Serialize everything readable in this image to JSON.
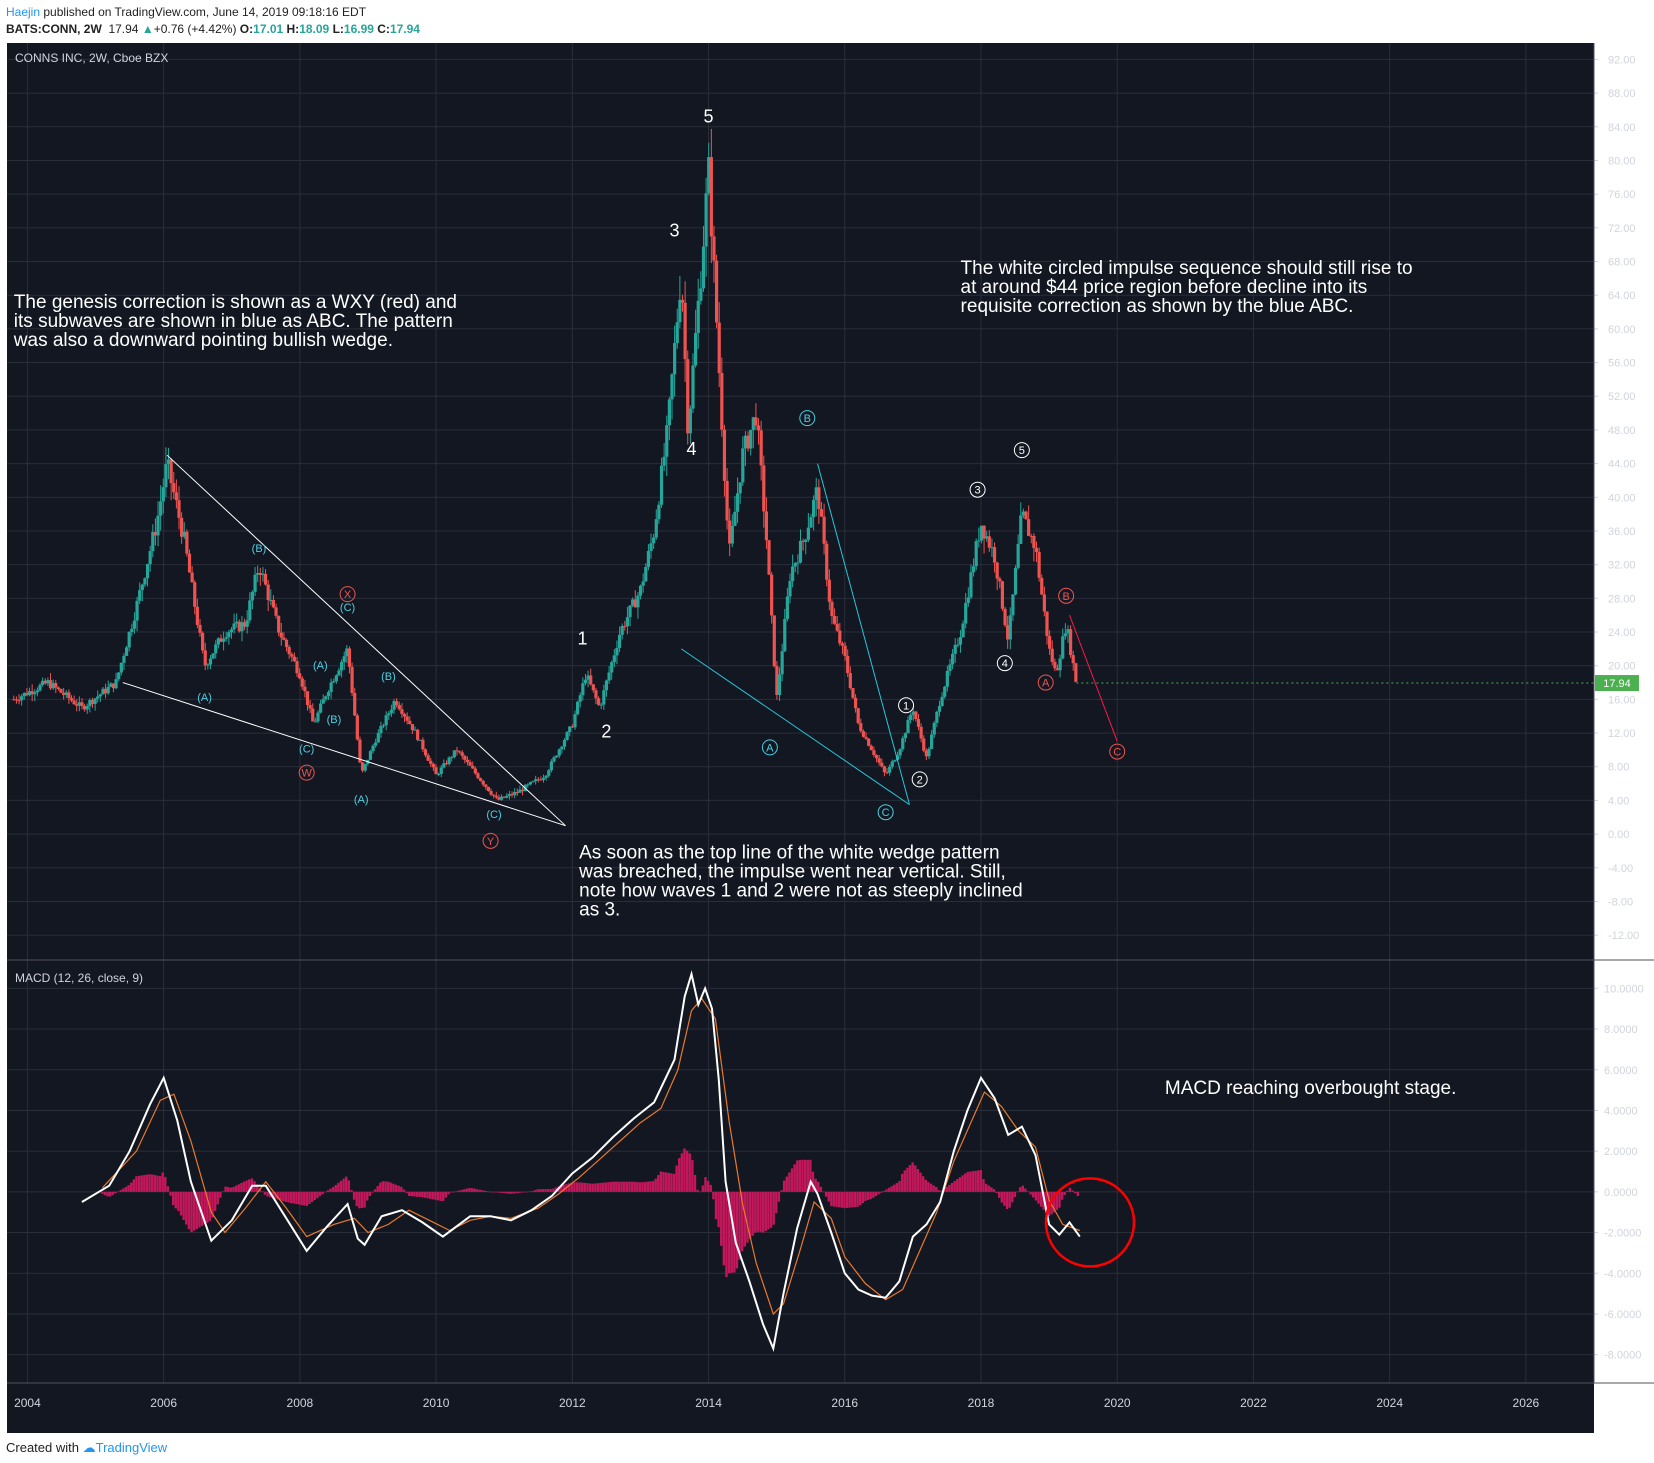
{
  "header": {
    "author": "Haejin",
    "published_text": "published on TradingView.com, June 14, 2019 09:18:16 EDT",
    "symbol_line": "BATS:CONN, 2W",
    "last": "17.94",
    "change": "+0.76 (+4.42%)",
    "o_label": "O:",
    "o": "17.01",
    "h_label": "H:",
    "h": "18.09",
    "l_label": "L:",
    "l": "16.99",
    "c_label": "C:",
    "c": "17.94"
  },
  "footer": {
    "created_with": "Created with",
    "brand": "TradingView"
  },
  "colors": {
    "background": "#131722",
    "grid": "#2a2e39",
    "up": "#26a69a",
    "down": "#ef5350",
    "macd_line": "#ffffff",
    "signal_line": "#e8792b",
    "histogram": "#c2185b",
    "wave_blue": "#4dd0e1",
    "wave_red": "#ef5350",
    "wave_white": "#ffffff",
    "highlight_circle": "#ff0000",
    "price_tag": "#4caf50"
  },
  "chart_data": [
    {
      "type": "candlestick",
      "title": "CONNS INC, 2W, Cboe BZX",
      "yticks": [
        "92.00",
        "88.00",
        "84.00",
        "80.00",
        "76.00",
        "72.00",
        "68.00",
        "64.00",
        "60.00",
        "56.00",
        "52.00",
        "48.00",
        "44.00",
        "40.00",
        "36.00",
        "32.00",
        "28.00",
        "24.00",
        "20.00",
        "16.00",
        "12.00",
        "8.00",
        "4.00",
        "0.00",
        "-4.00",
        "-8.00",
        "-12.00"
      ],
      "ylim": [
        -14,
        93
      ],
      "xticks": [
        "2004",
        "2006",
        "2008",
        "2010",
        "2012",
        "2014",
        "2016",
        "2018",
        "2020",
        "2022",
        "2024",
        "2026"
      ],
      "xlim": [
        2003.7,
        2027.0
      ],
      "last_price_label": "17.94",
      "last_price": 17.94,
      "price_path": [
        [
          2003.8,
          16
        ],
        [
          2004.3,
          18
        ],
        [
          2004.8,
          15
        ],
        [
          2005.3,
          18
        ],
        [
          2005.6,
          27
        ],
        [
          2005.9,
          37
        ],
        [
          2006.05,
          44
        ],
        [
          2006.3,
          35
        ],
        [
          2006.6,
          20
        ],
        [
          2006.9,
          24
        ],
        [
          2007.2,
          25
        ],
        [
          2007.4,
          32
        ],
        [
          2007.7,
          24
        ],
        [
          2008.0,
          19
        ],
        [
          2008.2,
          13
        ],
        [
          2008.4,
          17
        ],
        [
          2008.7,
          22
        ],
        [
          2008.9,
          7
        ],
        [
          2009.1,
          11
        ],
        [
          2009.4,
          16
        ],
        [
          2009.7,
          12
        ],
        [
          2010.0,
          7
        ],
        [
          2010.3,
          10
        ],
        [
          2010.6,
          7
        ],
        [
          2010.9,
          4
        ],
        [
          2011.2,
          5
        ],
        [
          2011.6,
          7
        ],
        [
          2012.0,
          13
        ],
        [
          2012.2,
          19
        ],
        [
          2012.4,
          15
        ],
        [
          2012.7,
          24
        ],
        [
          2013.0,
          29
        ],
        [
          2013.2,
          36
        ],
        [
          2013.4,
          48
        ],
        [
          2013.6,
          67
        ],
        [
          2013.7,
          48
        ],
        [
          2013.9,
          68
        ],
        [
          2014.0,
          79
        ],
        [
          2014.15,
          56
        ],
        [
          2014.3,
          33
        ],
        [
          2014.5,
          45
        ],
        [
          2014.7,
          50
        ],
        [
          2014.85,
          35
        ],
        [
          2015.0,
          16
        ],
        [
          2015.2,
          31
        ],
        [
          2015.4,
          35
        ],
        [
          2015.6,
          41
        ],
        [
          2015.8,
          26
        ],
        [
          2016.0,
          21
        ],
        [
          2016.2,
          13
        ],
        [
          2016.4,
          10
        ],
        [
          2016.6,
          7
        ],
        [
          2016.8,
          10
        ],
        [
          2017.0,
          15
        ],
        [
          2017.2,
          9
        ],
        [
          2017.4,
          16
        ],
        [
          2017.7,
          24
        ],
        [
          2018.0,
          37
        ],
        [
          2018.2,
          33
        ],
        [
          2018.4,
          23
        ],
        [
          2018.6,
          38
        ],
        [
          2018.8,
          34
        ],
        [
          2019.0,
          22
        ],
        [
          2019.1,
          19
        ],
        [
          2019.25,
          25
        ],
        [
          2019.4,
          17.94
        ]
      ],
      "wedge_lines": [
        {
          "color": "white",
          "from": [
            2006.05,
            45
          ],
          "to": [
            2011.9,
            1
          ]
        },
        {
          "color": "white",
          "from": [
            2005.4,
            18
          ],
          "to": [
            2011.9,
            1
          ]
        },
        {
          "color": "cyan",
          "from": [
            2015.6,
            44
          ],
          "to": [
            2016.95,
            3.5
          ]
        },
        {
          "color": "cyan",
          "from": [
            2013.6,
            22
          ],
          "to": [
            2016.95,
            3.5
          ]
        },
        {
          "color": "red",
          "from": [
            2019.3,
            26
          ],
          "to": [
            2020.0,
            11
          ]
        }
      ],
      "wave_labels": [
        {
          "text": "1",
          "color": "white",
          "style": "plain",
          "x": 2012.15,
          "y": 22.5
        },
        {
          "text": "2",
          "color": "white",
          "style": "plain",
          "x": 2012.5,
          "y": 11.5
        },
        {
          "text": "3",
          "color": "white",
          "style": "plain",
          "x": 2013.5,
          "y": 71
        },
        {
          "text": "4",
          "color": "white",
          "style": "plain",
          "x": 2013.75,
          "y": 45
        },
        {
          "text": "5",
          "color": "white",
          "style": "plain",
          "x": 2014.0,
          "y": 84.5
        },
        {
          "text": "(B)",
          "color": "blue",
          "style": "paren",
          "x": 2007.4,
          "y": 33.5
        },
        {
          "text": "(C)",
          "color": "blue",
          "style": "paren",
          "x": 2008.7,
          "y": 26.5
        },
        {
          "text": "(A)",
          "color": "blue",
          "style": "paren",
          "x": 2006.6,
          "y": 15.8
        },
        {
          "text": "(A)",
          "color": "blue",
          "style": "paren",
          "x": 2008.3,
          "y": 19.6
        },
        {
          "text": "(B)",
          "color": "blue",
          "style": "paren",
          "x": 2008.5,
          "y": 13.2
        },
        {
          "text": "(B)",
          "color": "blue",
          "style": "paren",
          "x": 2009.3,
          "y": 18.3
        },
        {
          "text": "(C)",
          "color": "blue",
          "style": "paren",
          "x": 2008.1,
          "y": 9.7
        },
        {
          "text": "(A)",
          "color": "blue",
          "style": "paren",
          "x": 2008.9,
          "y": 3.7
        },
        {
          "text": "(C)",
          "color": "blue",
          "style": "paren",
          "x": 2010.85,
          "y": 1.9
        },
        {
          "text": "X",
          "color": "red",
          "style": "circle",
          "x": 2008.7,
          "y": 28.5
        },
        {
          "text": "W",
          "color": "red",
          "style": "circle",
          "x": 2008.1,
          "y": 7.3
        },
        {
          "text": "Y",
          "color": "red",
          "style": "circle",
          "x": 2010.8,
          "y": -0.8
        },
        {
          "text": "B",
          "color": "blue",
          "style": "circle",
          "x": 2015.45,
          "y": 49.4
        },
        {
          "text": "A",
          "color": "blue",
          "style": "circle",
          "x": 2014.9,
          "y": 10.3
        },
        {
          "text": "C",
          "color": "blue",
          "style": "circle",
          "x": 2016.6,
          "y": 2.6
        },
        {
          "text": "1",
          "color": "white",
          "style": "circle",
          "x": 2016.9,
          "y": 15.3
        },
        {
          "text": "2",
          "color": "white",
          "style": "circle",
          "x": 2017.1,
          "y": 6.5
        },
        {
          "text": "3",
          "color": "white",
          "style": "circle",
          "x": 2017.95,
          "y": 40.9
        },
        {
          "text": "4",
          "color": "white",
          "style": "circle",
          "x": 2018.35,
          "y": 20.3
        },
        {
          "text": "5",
          "color": "white",
          "style": "circle",
          "x": 2018.6,
          "y": 45.6
        },
        {
          "text": "B",
          "color": "red",
          "style": "circle",
          "x": 2019.25,
          "y": 28.3
        },
        {
          "text": "A",
          "color": "red",
          "style": "circle",
          "x": 2018.95,
          "y": 18.0
        },
        {
          "text": "C",
          "color": "red",
          "style": "circle",
          "x": 2020.0,
          "y": 9.8
        }
      ],
      "annotations": [
        {
          "lines": [
            "The genesis correction is shown as a WXY (red) and",
            "its subwaves are shown in blue as ABC. The pattern",
            "was also a downward pointing bullish wedge."
          ],
          "x": 2003.8,
          "y": 62.5
        },
        {
          "lines": [
            "The white circled impulse sequence should still rise to",
            "at around $44 price region before decline into its",
            "requisite correction as shown by the blue ABC."
          ],
          "x": 2017.7,
          "y": 66.5
        },
        {
          "lines": [
            "As soon as the top line of the white wedge pattern",
            "was breached, the impulse went near vertical. Still,",
            "note how waves 1 and 2 were not as steeply inclined",
            "as 3."
          ],
          "x": 2012.1,
          "y": -2.9
        }
      ]
    },
    {
      "type": "line",
      "title": "MACD (12, 26, close, 9)",
      "yticks": [
        "10.0000",
        "8.0000",
        "6.0000",
        "4.0000",
        "2.0000",
        "0.0000",
        "-2.0000",
        "-4.0000",
        "-6.0000",
        "-8.0000"
      ],
      "ylim": [
        -9.0,
        11.0
      ],
      "macd_path": [
        [
          2004.8,
          -0.5
        ],
        [
          2005.2,
          0.3
        ],
        [
          2005.5,
          2
        ],
        [
          2005.8,
          4.3
        ],
        [
          2006.0,
          5.6
        ],
        [
          2006.2,
          3.5
        ],
        [
          2006.4,
          0.5
        ],
        [
          2006.7,
          -2.4
        ],
        [
          2007.0,
          -1.4
        ],
        [
          2007.3,
          0.3
        ],
        [
          2007.5,
          0.3
        ],
        [
          2007.8,
          -1.3
        ],
        [
          2008.1,
          -2.9
        ],
        [
          2008.4,
          -1.7
        ],
        [
          2008.7,
          -0.6
        ],
        [
          2008.85,
          -2.3
        ],
        [
          2008.95,
          -2.6
        ],
        [
          2009.2,
          -1.2
        ],
        [
          2009.5,
          -0.9
        ],
        [
          2009.8,
          -1.5
        ],
        [
          2010.1,
          -2.2
        ],
        [
          2010.5,
          -1.2
        ],
        [
          2010.8,
          -1.2
        ],
        [
          2011.1,
          -1.4
        ],
        [
          2011.4,
          -0.9
        ],
        [
          2011.7,
          -0.2
        ],
        [
          2012.0,
          0.9
        ],
        [
          2012.3,
          1.7
        ],
        [
          2012.6,
          2.7
        ],
        [
          2012.9,
          3.6
        ],
        [
          2013.2,
          4.4
        ],
        [
          2013.5,
          6.5
        ],
        [
          2013.65,
          9.6
        ],
        [
          2013.75,
          10.7
        ],
        [
          2013.85,
          9.2
        ],
        [
          2013.95,
          10.0
        ],
        [
          2014.05,
          9.0
        ],
        [
          2014.15,
          5.5
        ],
        [
          2014.25,
          0.5
        ],
        [
          2014.4,
          -2.5
        ],
        [
          2014.6,
          -4.4
        ],
        [
          2014.8,
          -6.5
        ],
        [
          2014.95,
          -7.7
        ],
        [
          2015.1,
          -5.0
        ],
        [
          2015.3,
          -1.8
        ],
        [
          2015.5,
          0.5
        ],
        [
          2015.6,
          -0.1
        ],
        [
          2015.8,
          -2.0
        ],
        [
          2016.0,
          -4.0
        ],
        [
          2016.2,
          -4.8
        ],
        [
          2016.4,
          -5.1
        ],
        [
          2016.6,
          -5.2
        ],
        [
          2016.8,
          -4.4
        ],
        [
          2017.0,
          -2.2
        ],
        [
          2017.2,
          -1.6
        ],
        [
          2017.4,
          -0.5
        ],
        [
          2017.6,
          2.0
        ],
        [
          2017.8,
          4.0
        ],
        [
          2018.0,
          5.6
        ],
        [
          2018.2,
          4.6
        ],
        [
          2018.4,
          2.8
        ],
        [
          2018.6,
          3.2
        ],
        [
          2018.8,
          1.8
        ],
        [
          2019.0,
          -1.6
        ],
        [
          2019.15,
          -2.1
        ],
        [
          2019.3,
          -1.5
        ],
        [
          2019.45,
          -2.2
        ]
      ],
      "signal_path": [
        [
          2005.1,
          0.2
        ],
        [
          2005.6,
          2
        ],
        [
          2005.95,
          4.5
        ],
        [
          2006.15,
          4.8
        ],
        [
          2006.4,
          2.5
        ],
        [
          2006.7,
          -1.0
        ],
        [
          2006.9,
          -2.0
        ],
        [
          2007.2,
          -0.8
        ],
        [
          2007.5,
          0.5
        ],
        [
          2007.8,
          -0.8
        ],
        [
          2008.1,
          -2.2
        ],
        [
          2008.5,
          -1.6
        ],
        [
          2008.8,
          -1.3
        ],
        [
          2009.0,
          -2.0
        ],
        [
          2009.3,
          -1.6
        ],
        [
          2009.6,
          -0.9
        ],
        [
          2009.9,
          -1.4
        ],
        [
          2010.2,
          -1.9
        ],
        [
          2010.5,
          -1.4
        ],
        [
          2010.8,
          -1.2
        ],
        [
          2011.1,
          -1.3
        ],
        [
          2011.5,
          -0.8
        ],
        [
          2011.8,
          -0.1
        ],
        [
          2012.1,
          0.7
        ],
        [
          2012.4,
          1.6
        ],
        [
          2012.7,
          2.5
        ],
        [
          2013.0,
          3.4
        ],
        [
          2013.3,
          4.1
        ],
        [
          2013.55,
          6.0
        ],
        [
          2013.75,
          8.9
        ],
        [
          2013.9,
          9.5
        ],
        [
          2014.1,
          8.5
        ],
        [
          2014.3,
          3.5
        ],
        [
          2014.5,
          -0.6
        ],
        [
          2014.7,
          -3.5
        ],
        [
          2014.95,
          -6.0
        ],
        [
          2015.1,
          -5.5
        ],
        [
          2015.35,
          -2.8
        ],
        [
          2015.55,
          -0.5
        ],
        [
          2015.8,
          -1.3
        ],
        [
          2016.0,
          -3.2
        ],
        [
          2016.3,
          -4.5
        ],
        [
          2016.6,
          -5.3
        ],
        [
          2016.85,
          -4.8
        ],
        [
          2017.1,
          -2.9
        ],
        [
          2017.35,
          -1.0
        ],
        [
          2017.6,
          1.5
        ],
        [
          2017.85,
          3.4
        ],
        [
          2018.05,
          4.9
        ],
        [
          2018.3,
          4.2
        ],
        [
          2018.55,
          3.0
        ],
        [
          2018.8,
          2.2
        ],
        [
          2019.0,
          -0.4
        ],
        [
          2019.2,
          -1.6
        ],
        [
          2019.45,
          -1.9
        ]
      ],
      "annotation": "MACD reaching overbought stage."
    }
  ]
}
